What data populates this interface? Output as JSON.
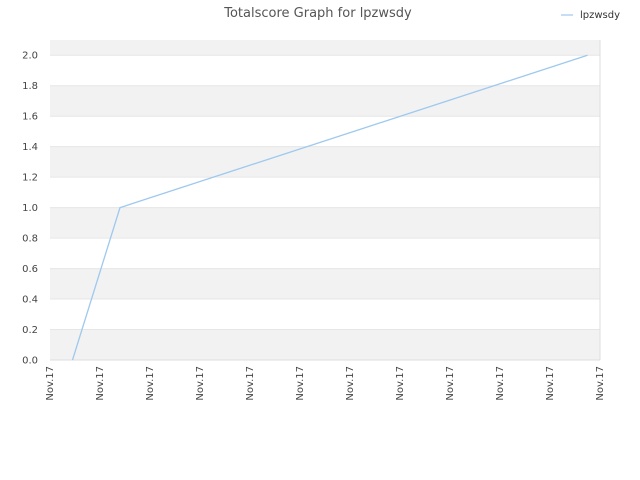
{
  "chart_data": {
    "type": "line",
    "title": "Totalscore Graph for lpzwsdy",
    "xlabel": "",
    "ylabel": "",
    "x_ticks": [
      "Nov.17",
      "Nov.17",
      "Nov.17",
      "Nov.17",
      "Nov.17",
      "Nov.17",
      "Nov.17",
      "Nov.17",
      "Nov.17",
      "Nov.17",
      "Nov.17",
      "Nov.17"
    ],
    "y_ticks": [
      "0.0",
      "0.2",
      "0.4",
      "0.6",
      "0.8",
      "1.0",
      "1.2",
      "1.4",
      "1.6",
      "1.8",
      "2.0"
    ],
    "ylim": [
      0,
      2.1
    ],
    "xlim": [
      0,
      11
    ],
    "grid": "horizontal alternating bands",
    "legend_position": "top-right",
    "series": [
      {
        "name": "lpzwsdy",
        "color": "#9ec9ef",
        "x": [
          0.45,
          1.4,
          10.75
        ],
        "y": [
          0,
          1.0,
          2.0
        ]
      }
    ]
  },
  "colors": {
    "band": "#f2f2f2",
    "grid": "#e6e6e6",
    "axis": "#dddddd"
  }
}
